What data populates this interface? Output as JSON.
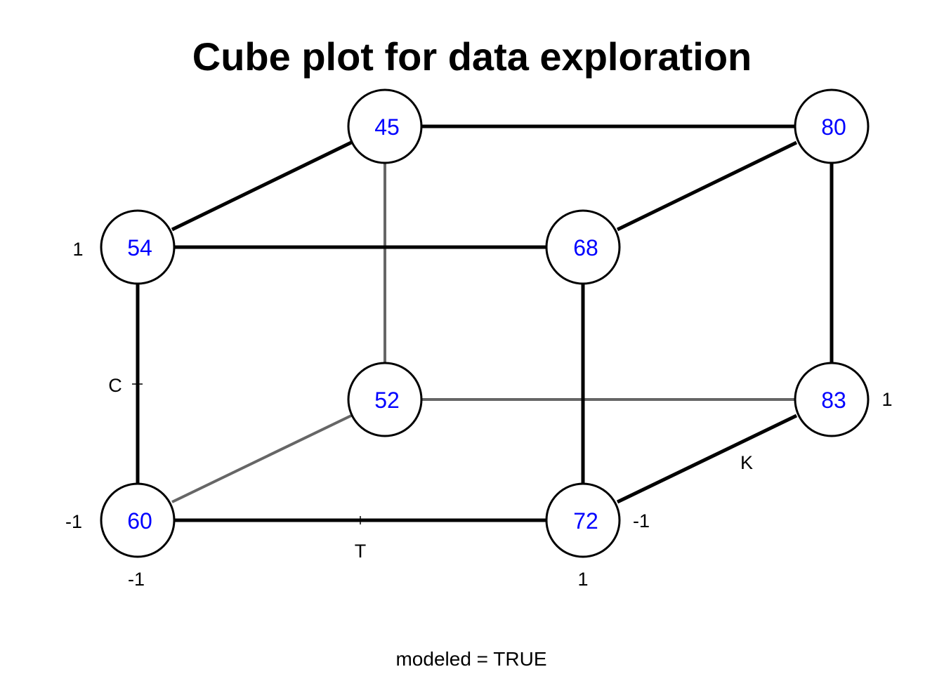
{
  "title": "Cube plot for data exploration",
  "footer": "modeled = TRUE",
  "factors": {
    "x": {
      "name": "T",
      "low": "-1",
      "high": "1"
    },
    "y": {
      "name": "C",
      "low": "-1",
      "high": "1"
    },
    "z": {
      "name": "K",
      "low": "-1",
      "high": "1"
    }
  },
  "nodes": {
    "front_bottom_left": "60",
    "front_bottom_right": "72",
    "front_top_left": "54",
    "front_top_right": "68",
    "back_bottom_left": "52",
    "back_bottom_right": "83",
    "back_top_left": "45",
    "back_top_right": "80"
  },
  "colors": {
    "value_text": "#0000ff",
    "edge_front": "#000000",
    "edge_hidden": "#666666"
  }
}
